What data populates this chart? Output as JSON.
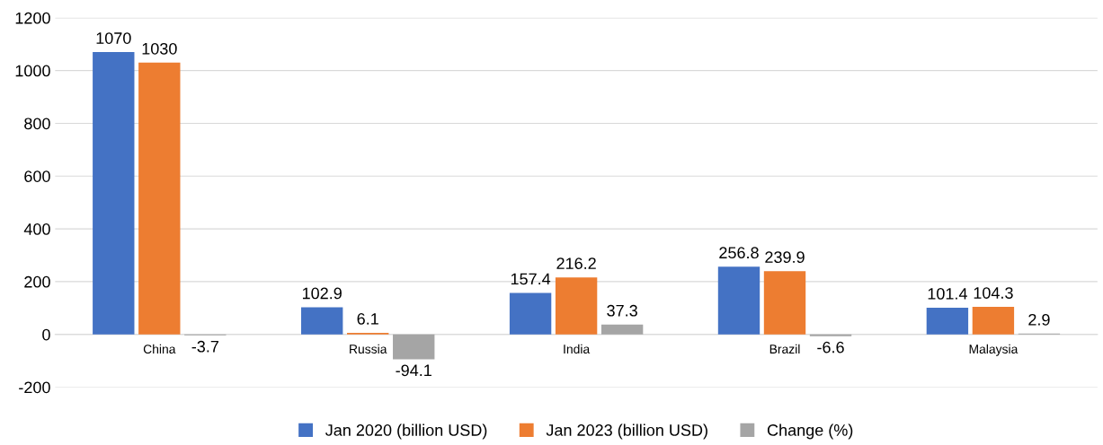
{
  "chart_data": {
    "type": "bar",
    "categories": [
      "China",
      "Russia",
      "India",
      "Brazil",
      "Malaysia"
    ],
    "series": [
      {
        "name": "Jan 2020 (billion USD)",
        "color": "#4472c4",
        "values": [
          1070,
          102.9,
          157.4,
          256.8,
          101.4
        ]
      },
      {
        "name": "Jan 2023 (billion USD)",
        "color": "#ed7d31",
        "values": [
          1030,
          6.1,
          216.2,
          239.9,
          104.3
        ]
      },
      {
        "name": "Change (%)",
        "color": "#a5a5a5",
        "values": [
          -3.7,
          -94.1,
          37.3,
          -6.6,
          2.9
        ]
      }
    ],
    "ylim": [
      -200,
      1200
    ],
    "yticks": [
      -200,
      0,
      200,
      400,
      600,
      800,
      1000,
      1200
    ],
    "grid": "y",
    "legend": "bottom",
    "data_labels": true
  }
}
